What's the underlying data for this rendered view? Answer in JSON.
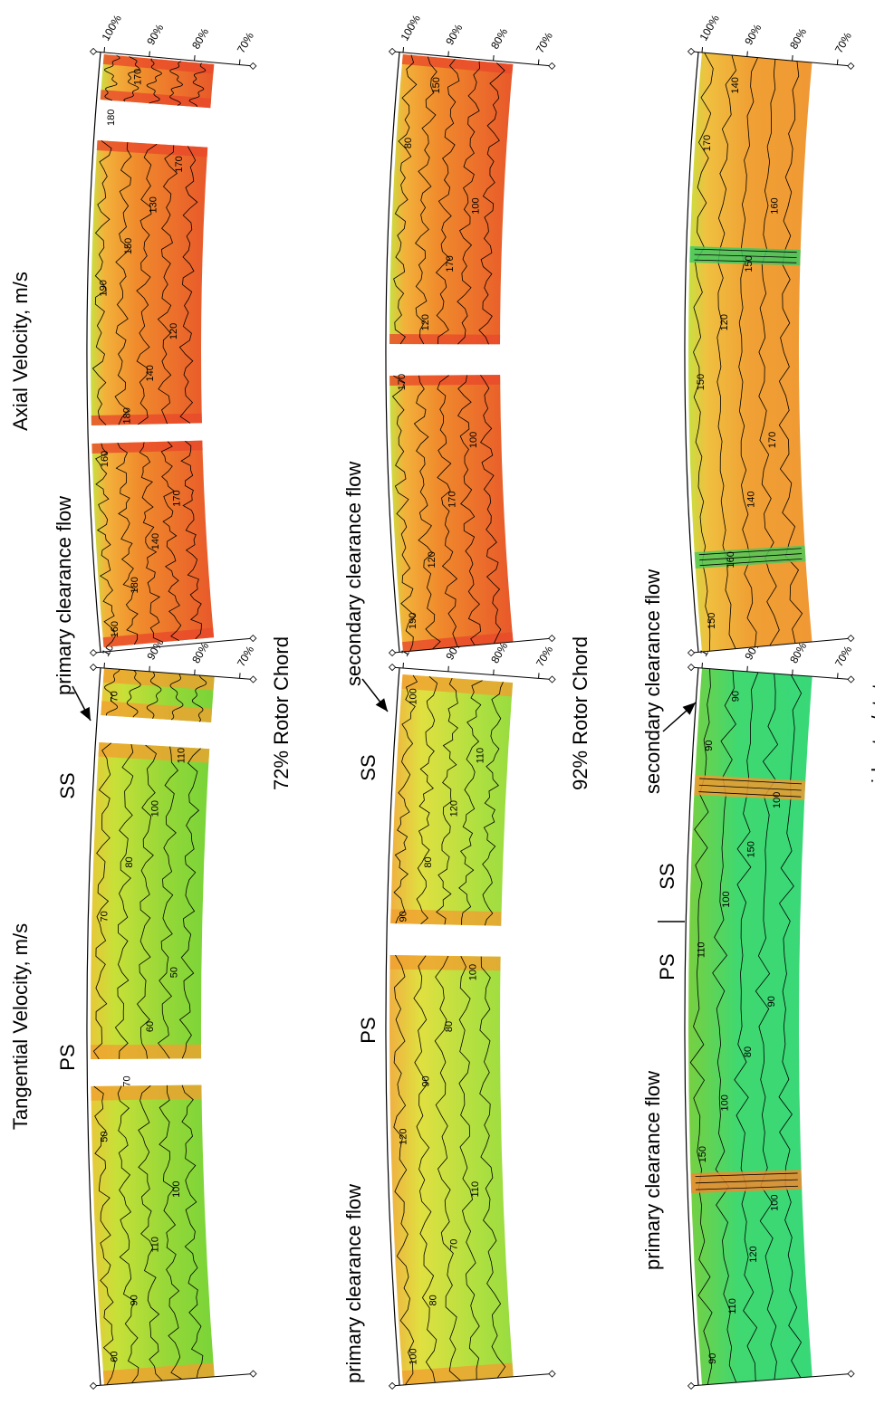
{
  "titles": {
    "tangential": "Tangential Velocity, m/s",
    "axial": "Axial Velocity, m/s"
  },
  "radial_labels": [
    "100%",
    "90%",
    "80%",
    "70%"
  ],
  "rows": [
    {
      "label": "72% Rotor Chord",
      "annotations": [
        "PS",
        "SS",
        "primary clearance flow"
      ],
      "tangential_contours": [
        "60",
        "90",
        "110",
        "100",
        "50",
        "70",
        "60",
        "50",
        "70",
        "80",
        "100",
        "110",
        "70"
      ],
      "axial_contours": [
        "160",
        "180",
        "140",
        "170",
        "160",
        "180",
        "140",
        "120",
        "190",
        "150",
        "130",
        "170",
        "180",
        "170"
      ]
    },
    {
      "label": "92% Rotor Chord",
      "annotations": [
        "primary clearance flow",
        "PS",
        "SS",
        "secondary clearance flow"
      ],
      "tangential_contours": [
        "100",
        "80",
        "70",
        "110",
        "120",
        "90",
        "80",
        "100",
        "90",
        "80",
        "120",
        "110",
        "100"
      ],
      "axial_contours": [
        "190",
        "120",
        "170",
        "100",
        "170",
        "120",
        "170",
        "100",
        "80",
        "150"
      ]
    },
    {
      "label": "mid rotor/stator gap",
      "annotations": [
        "primary clearance flow",
        "PS",
        "SS",
        "secondary clearance flow"
      ],
      "tangential_contours": [
        "90",
        "110",
        "120",
        "100",
        "150",
        "100",
        "80",
        "90",
        "110",
        "100",
        "150",
        "100",
        "90",
        "90"
      ],
      "axial_contours": [
        "150",
        "160",
        "140",
        "170",
        "150",
        "120",
        "150",
        "160",
        "170",
        "140"
      ]
    }
  ]
}
